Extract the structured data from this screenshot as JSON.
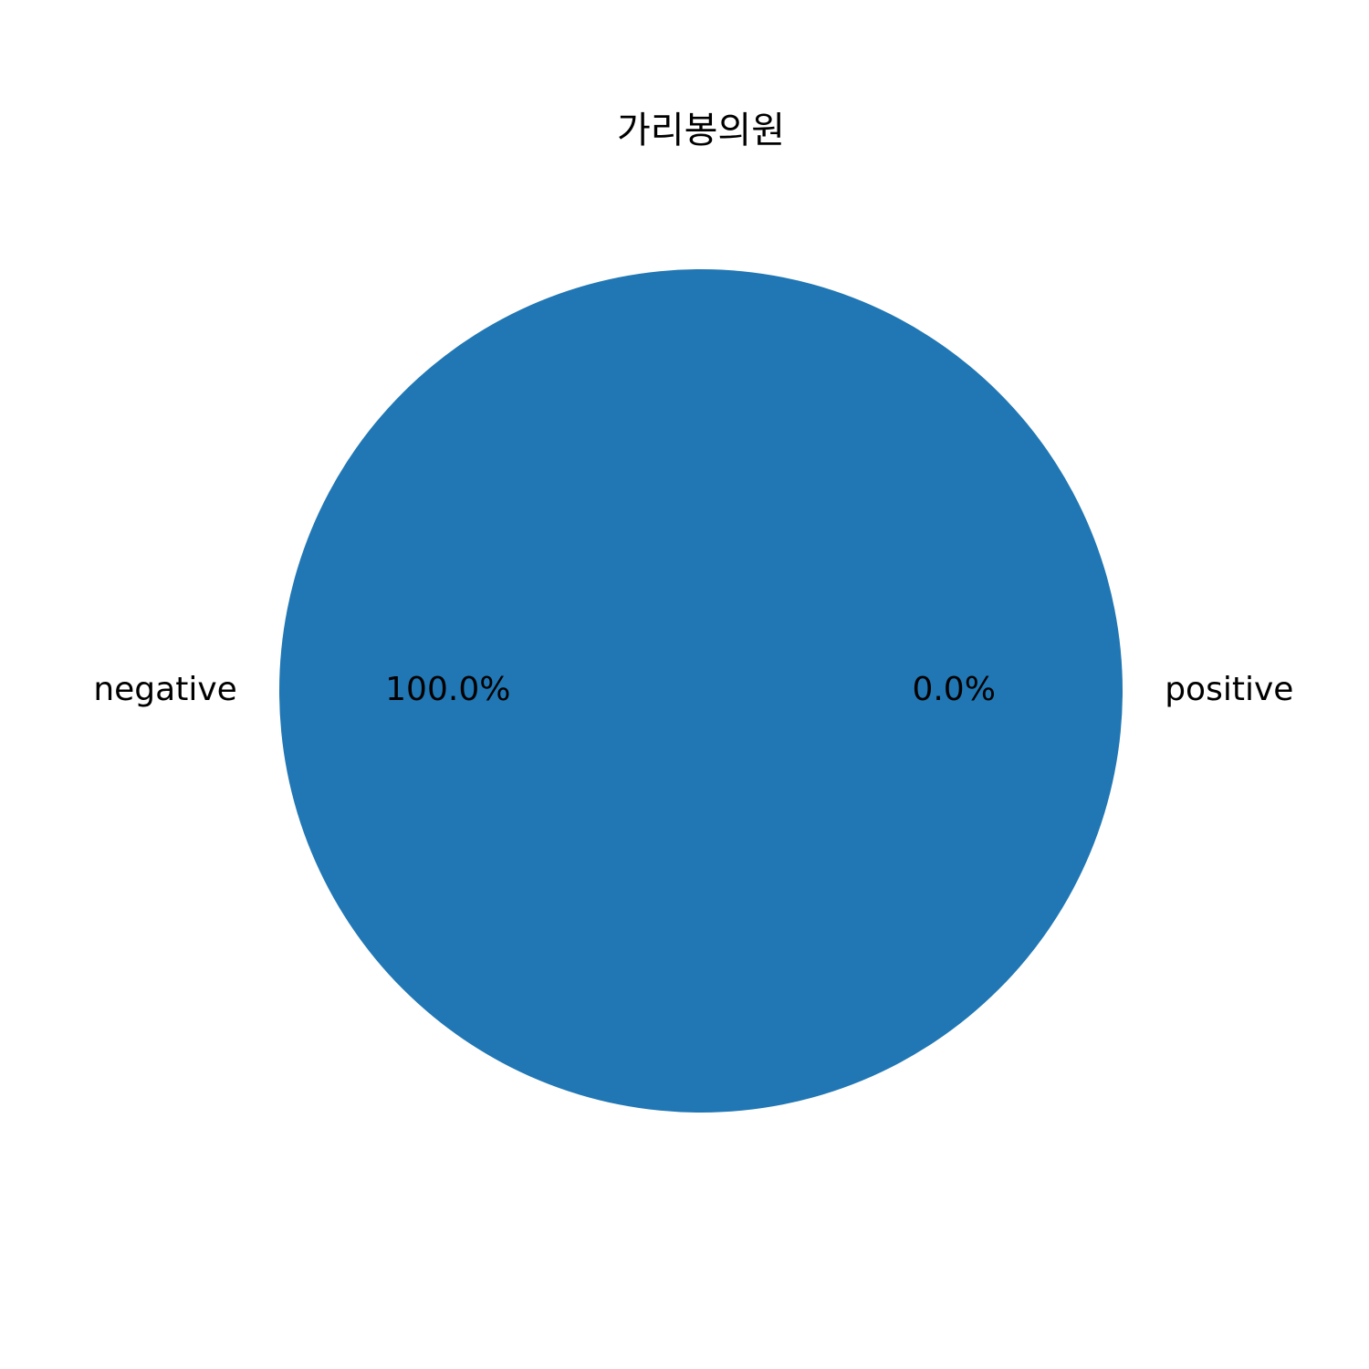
{
  "chart_data": {
    "type": "pie",
    "title": "가리봉의원",
    "categories": [
      "negative",
      "positive"
    ],
    "values": [
      100.0,
      0.0
    ],
    "percent_labels": [
      "100.0%",
      "0.0%"
    ],
    "colors": [
      "#2077b4",
      "#ff7f0e"
    ],
    "start_angle_deg": 0,
    "direction": "counterclockwise",
    "legend": "none"
  }
}
